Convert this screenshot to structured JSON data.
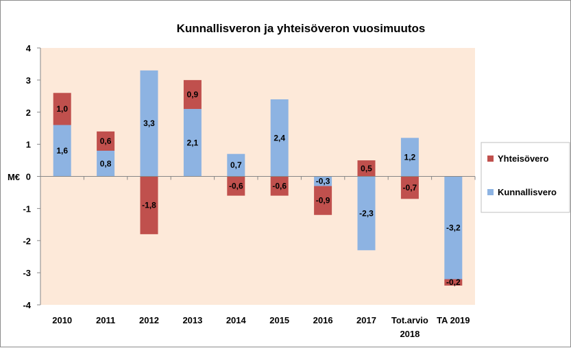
{
  "chart_data": {
    "type": "bar",
    "stacked": true,
    "title": "Kunnallisveron ja yhteisöveron vuosimuutos",
    "ylabel": "M€",
    "xlabel": "",
    "ylim": [
      -4,
      4
    ],
    "yticks": [
      4,
      3,
      2,
      1,
      0,
      -1,
      -2,
      -3,
      -4
    ],
    "categories": [
      [
        "2010"
      ],
      [
        "2011"
      ],
      [
        "2012"
      ],
      [
        "2013"
      ],
      [
        "2014"
      ],
      [
        "2015"
      ],
      [
        "2016"
      ],
      [
        "2017"
      ],
      [
        "Tot.arvio",
        "2018"
      ],
      [
        "TA 2019"
      ]
    ],
    "series": [
      {
        "name": "Kunnallisvero",
        "color": "#8db3e2",
        "values": [
          1.6,
          0.8,
          3.3,
          2.1,
          0.7,
          0,
          -0.3,
          -2.3,
          1.2,
          -3.2
        ],
        "labels": [
          "1,6",
          "0,8",
          "3,3",
          "2,1",
          "0,7",
          "",
          "-0,3",
          "-2,3",
          "1,2",
          "-3,2"
        ]
      },
      {
        "name": "Yhteisövero",
        "color": "#c0504d",
        "values": [
          1.0,
          0.6,
          -1.8,
          0.9,
          -0.6,
          -0.6,
          -0.9,
          0.5,
          -0.7,
          -0.2
        ],
        "labels": [
          "1,0",
          "0,6",
          "-1,8",
          "0,9",
          "-0,6",
          "-0,6",
          "-0,9",
          "0,5",
          "-0,7",
          "-0,2"
        ]
      },
      {
        "name": "",
        "color": "#8db3e2",
        "values": [
          0,
          0,
          0,
          0,
          0,
          2.4,
          0,
          0,
          0,
          0
        ],
        "labels": [
          "",
          "",
          "",
          "",
          "",
          "2,4",
          "",
          "",
          "",
          ""
        ]
      }
    ],
    "legend": {
      "position": "right",
      "entries": [
        {
          "name": "Yhteisövero",
          "color": "#c0504d"
        },
        {
          "name": "Kunnallisvero",
          "color": "#8db3e2"
        }
      ]
    },
    "plot_background": "#fde9d9",
    "grid": false
  }
}
